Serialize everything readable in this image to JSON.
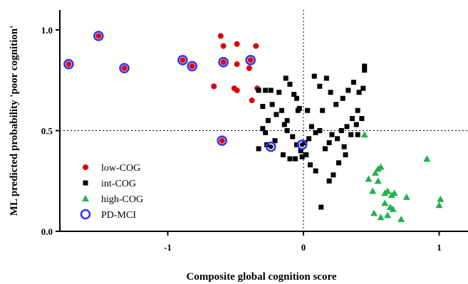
{
  "chart_data": {
    "type": "scatter",
    "xlabel": "Composite global cognition score",
    "ylabel": "ML predicted probability 'poor cognition'",
    "xlim": [
      -1.75,
      1.2
    ],
    "ylim": [
      0.0,
      1.1
    ],
    "xticks": [
      {
        "value": -1,
        "label": "-1"
      },
      {
        "value": 0,
        "label": "0"
      },
      {
        "value": 1,
        "label": "1"
      }
    ],
    "yticks": [
      {
        "value": 0.0,
        "label": "0.0"
      },
      {
        "value": 0.5,
        "label": "0.5"
      },
      {
        "value": 1.0,
        "label": "1.0"
      }
    ],
    "reference_lines": {
      "x": 0,
      "y": 0.5
    },
    "legend_position": "left-lower",
    "series": [
      {
        "name": "low-COG",
        "marker": "circle",
        "color": "#e00000",
        "points": [
          [
            -1.73,
            0.83
          ],
          [
            -1.51,
            0.97
          ],
          [
            -1.32,
            0.81
          ],
          [
            -0.89,
            0.85
          ],
          [
            -0.82,
            0.82
          ],
          [
            -0.61,
            0.97
          ],
          [
            -0.59,
            0.84
          ],
          [
            -0.59,
            0.92
          ],
          [
            -0.49,
            0.93
          ],
          [
            -0.49,
            0.83
          ],
          [
            -0.39,
            0.85
          ],
          [
            -0.4,
            0.81
          ],
          [
            -0.35,
            0.92
          ],
          [
            -0.34,
            0.71
          ],
          [
            -0.51,
            0.71
          ],
          [
            -0.49,
            0.7
          ],
          [
            -0.66,
            0.72
          ],
          [
            -0.38,
            0.65
          ],
          [
            -0.6,
            0.45
          ]
        ]
      },
      {
        "name": "int-COG",
        "marker": "square",
        "color": "#000000",
        "points": [
          [
            -0.33,
            0.7
          ],
          [
            -0.28,
            0.7
          ],
          [
            -0.24,
            0.7
          ],
          [
            -0.18,
            0.69
          ],
          [
            -0.13,
            0.76
          ],
          [
            -0.1,
            0.73
          ],
          [
            -0.07,
            0.68
          ],
          [
            -0.05,
            0.66
          ],
          [
            -0.03,
            0.61
          ],
          [
            0.03,
            0.6
          ],
          [
            0.08,
            0.77
          ],
          [
            0.12,
            0.72
          ],
          [
            0.17,
            0.76
          ],
          [
            0.2,
            0.69
          ],
          [
            0.24,
            0.63
          ],
          [
            0.29,
            0.66
          ],
          [
            0.33,
            0.7
          ],
          [
            0.37,
            0.74
          ],
          [
            0.41,
            0.69
          ],
          [
            0.45,
            0.82
          ],
          [
            0.45,
            0.8
          ],
          [
            0.44,
            0.71
          ],
          [
            0.4,
            0.6
          ],
          [
            0.36,
            0.56
          ],
          [
            0.32,
            0.52
          ],
          [
            0.28,
            0.5
          ],
          [
            0.25,
            0.46
          ],
          [
            0.21,
            0.48
          ],
          [
            0.19,
            0.44
          ],
          [
            0.16,
            0.41
          ],
          [
            0.12,
            0.5
          ],
          [
            0.09,
            0.49
          ],
          [
            0.06,
            0.52
          ],
          [
            0.04,
            0.46
          ],
          [
            0.01,
            0.44
          ],
          [
            -0.02,
            0.4
          ],
          [
            -0.05,
            0.43
          ],
          [
            -0.08,
            0.47
          ],
          [
            -0.12,
            0.5
          ],
          [
            -0.14,
            0.53
          ],
          [
            -0.16,
            0.6
          ],
          [
            -0.2,
            0.58
          ],
          [
            -0.23,
            0.63
          ],
          [
            -0.26,
            0.55
          ],
          [
            -0.28,
            0.49
          ],
          [
            -0.3,
            0.51
          ],
          [
            -0.33,
            0.41
          ],
          [
            -0.27,
            0.43
          ],
          [
            -0.21,
            0.45
          ],
          [
            -0.15,
            0.38
          ],
          [
            -0.1,
            0.36
          ],
          [
            -0.06,
            0.36
          ],
          [
            -0.01,
            0.37
          ],
          [
            0.02,
            0.38
          ],
          [
            0.09,
            0.3
          ],
          [
            0.13,
            0.12
          ],
          [
            0.19,
            0.25
          ],
          [
            0.22,
            0.28
          ],
          [
            0.3,
            0.42
          ],
          [
            0.35,
            0.48
          ],
          [
            0.39,
            0.53
          ],
          [
            0.43,
            0.56
          ],
          [
            0.31,
            0.38
          ],
          [
            0.26,
            0.34
          ],
          [
            0.05,
            0.33
          ],
          [
            -0.04,
            0.6
          ],
          [
            -0.12,
            0.55
          ],
          [
            -0.3,
            0.62
          ],
          [
            0.4,
            0.48
          ],
          [
            0.14,
            0.6
          ]
        ]
      },
      {
        "name": "high-COG",
        "marker": "triangle",
        "color": "#22b14c",
        "points": [
          [
            0.45,
            0.48
          ],
          [
            0.48,
            0.26
          ],
          [
            0.51,
            0.2
          ],
          [
            0.53,
            0.29
          ],
          [
            0.55,
            0.31
          ],
          [
            0.57,
            0.32
          ],
          [
            0.55,
            0.25
          ],
          [
            0.6,
            0.19
          ],
          [
            0.62,
            0.2
          ],
          [
            0.65,
            0.18
          ],
          [
            0.67,
            0.19
          ],
          [
            0.64,
            0.12
          ],
          [
            0.6,
            0.14
          ],
          [
            0.52,
            0.09
          ],
          [
            0.57,
            0.07
          ],
          [
            0.62,
            0.08
          ],
          [
            0.66,
            0.11
          ],
          [
            0.72,
            0.06
          ],
          [
            0.76,
            0.17
          ],
          [
            0.91,
            0.36
          ],
          [
            1.01,
            0.16
          ],
          [
            1.0,
            0.13
          ]
        ]
      }
    ],
    "overlay": {
      "name": "PD-MCI",
      "marker": "ring",
      "color": "#3333ee",
      "points": [
        [
          -1.73,
          0.83
        ],
        [
          -1.51,
          0.97
        ],
        [
          -1.32,
          0.81
        ],
        [
          -0.89,
          0.85
        ],
        [
          -0.82,
          0.82
        ],
        [
          -0.59,
          0.84
        ],
        [
          -0.39,
          0.85
        ],
        [
          -0.6,
          0.45
        ],
        [
          -0.24,
          0.42
        ],
        [
          -0.01,
          0.43
        ]
      ],
      "inner_color": "#000000"
    }
  }
}
